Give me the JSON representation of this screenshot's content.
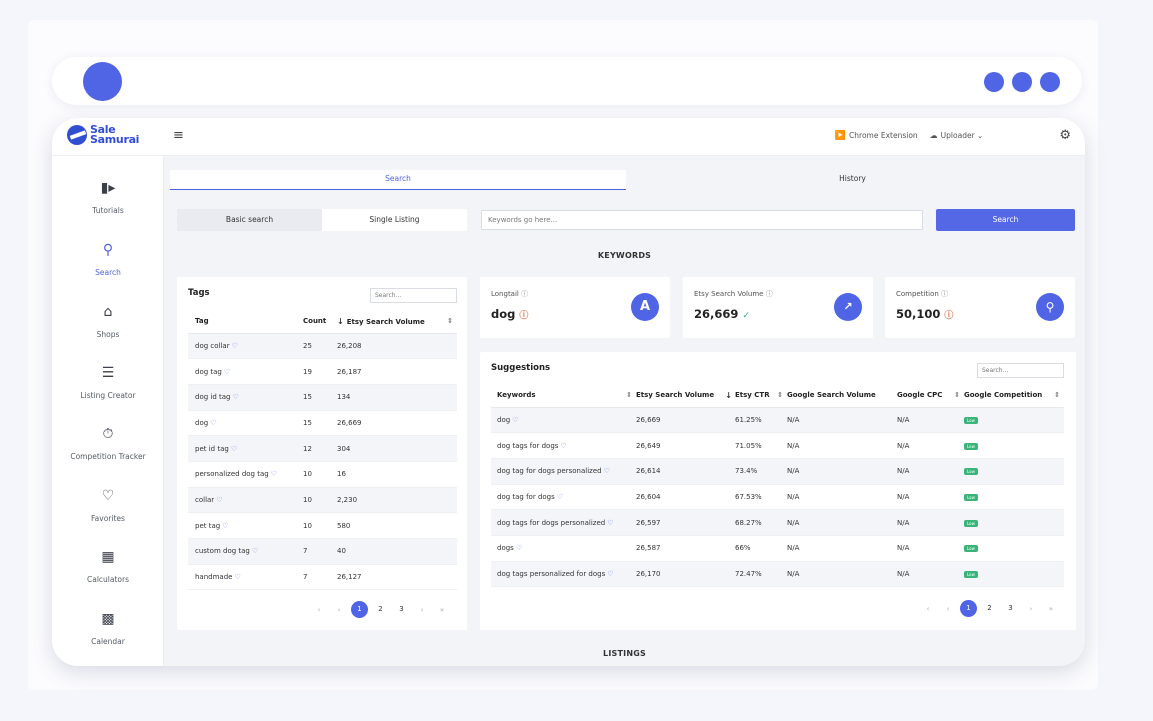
{
  "app": {
    "logo_line1": "Sale",
    "logo_line2": "Samurai",
    "menu_icon": "hamburger-icon",
    "chrome_extension_label": "Chrome Extension",
    "uploader_label": "Uploader",
    "accent_color": "#5064e6"
  },
  "sidebar": {
    "items": [
      {
        "label": "Tutorials",
        "icon": "video-icon"
      },
      {
        "label": "Search",
        "icon": "search-icon"
      },
      {
        "label": "Shops",
        "icon": "shop-icon"
      },
      {
        "label": "Listing Creator",
        "icon": "list-edit-icon"
      },
      {
        "label": "Competition Tracker",
        "icon": "timer-icon"
      },
      {
        "label": "Favorites",
        "icon": "heart-icon"
      },
      {
        "label": "Calculators",
        "icon": "calculator-icon"
      },
      {
        "label": "Calendar",
        "icon": "calendar-icon"
      }
    ],
    "active": "Search"
  },
  "tabs": {
    "search": "Search",
    "history": "History"
  },
  "mode": {
    "basic": "Basic search",
    "single": "Single Listing"
  },
  "search": {
    "placeholder": "Keywords go here...",
    "button": "Search"
  },
  "sections": {
    "keywords": "KEYWORDS",
    "listings": "LISTINGS"
  },
  "tags": {
    "title": "Tags",
    "search_placeholder": "Search...",
    "headers": {
      "tag": "Tag",
      "count": "Count",
      "volume": "Etsy Search Volume"
    },
    "rows": [
      {
        "tag": "dog collar",
        "count": "25",
        "volume": "26,208"
      },
      {
        "tag": "dog tag",
        "count": "19",
        "volume": "26,187"
      },
      {
        "tag": "dog id tag",
        "count": "15",
        "volume": "134"
      },
      {
        "tag": "dog",
        "count": "15",
        "volume": "26,669"
      },
      {
        "tag": "pet id tag",
        "count": "12",
        "volume": "304"
      },
      {
        "tag": "personalized dog tag",
        "count": "10",
        "volume": "16"
      },
      {
        "tag": "collar",
        "count": "10",
        "volume": "2,230"
      },
      {
        "tag": "pet tag",
        "count": "10",
        "volume": "580"
      },
      {
        "tag": "custom dog tag",
        "count": "7",
        "volume": "40"
      },
      {
        "tag": "handmade",
        "count": "7",
        "volume": "26,127"
      }
    ],
    "pages": [
      "1",
      "2",
      "3"
    ]
  },
  "stats": {
    "longtail": {
      "label": "Longtail",
      "value": "dog",
      "icon_letter": "A"
    },
    "volume": {
      "label": "Etsy Search Volume",
      "value": "26,669"
    },
    "competition": {
      "label": "Competition",
      "value": "50,100"
    }
  },
  "suggestions": {
    "title": "Suggestions",
    "search_placeholder": "Search...",
    "headers": {
      "keyword": "Keywords",
      "volume": "Etsy Search Volume",
      "ctr": "Etsy CTR",
      "google_volume": "Google Search Volume",
      "cpc": "Google CPC",
      "competition": "Google Competition"
    },
    "rows": [
      {
        "keyword": "dog",
        "volume": "26,669",
        "ctr": "61.25%",
        "google_volume": "N/A",
        "cpc": "N/A",
        "competition": "Low"
      },
      {
        "keyword": "dog tags for dogs",
        "volume": "26,649",
        "ctr": "71.05%",
        "google_volume": "N/A",
        "cpc": "N/A",
        "competition": "Low"
      },
      {
        "keyword": "dog tag for dogs personalized",
        "volume": "26,614",
        "ctr": "73.4%",
        "google_volume": "N/A",
        "cpc": "N/A",
        "competition": "Low"
      },
      {
        "keyword": "dog tag for dogs",
        "volume": "26,604",
        "ctr": "67.53%",
        "google_volume": "N/A",
        "cpc": "N/A",
        "competition": "Low"
      },
      {
        "keyword": "dog tags for dogs personalized",
        "volume": "26,597",
        "ctr": "68.27%",
        "google_volume": "N/A",
        "cpc": "N/A",
        "competition": "Low"
      },
      {
        "keyword": "dogs",
        "volume": "26,587",
        "ctr": "66%",
        "google_volume": "N/A",
        "cpc": "N/A",
        "competition": "Low"
      },
      {
        "keyword": "dog tags personalized for dogs",
        "volume": "26,170",
        "ctr": "72.47%",
        "google_volume": "N/A",
        "cpc": "N/A",
        "competition": "Low"
      }
    ],
    "pages": [
      "1",
      "2",
      "3"
    ]
  }
}
